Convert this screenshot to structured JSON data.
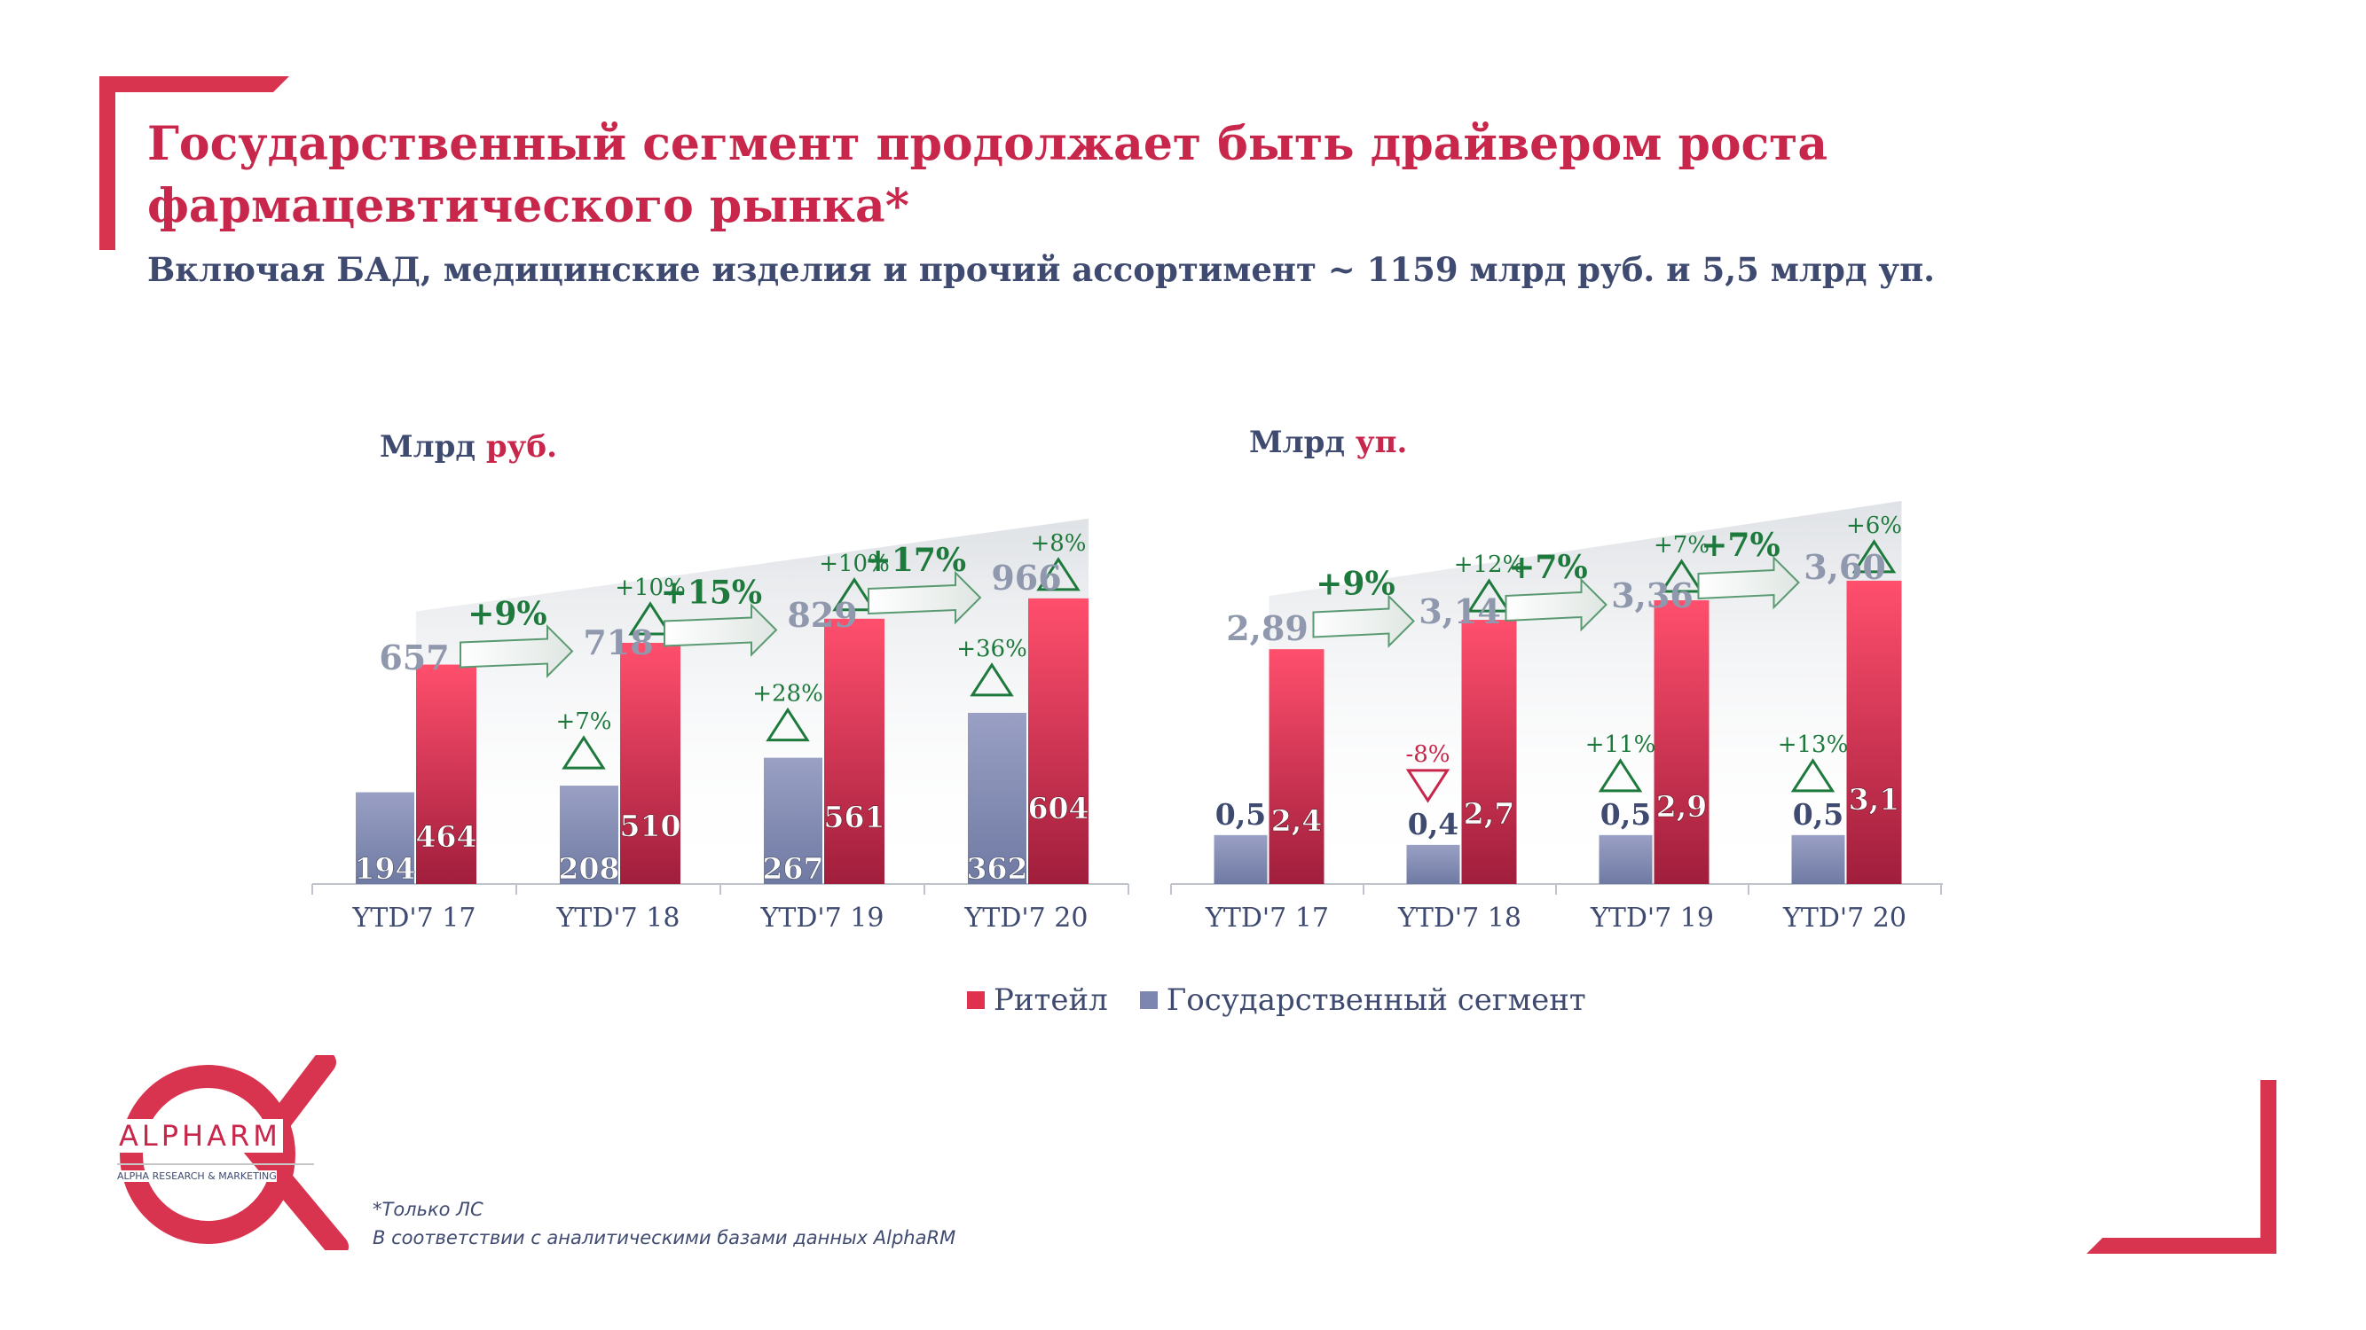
{
  "title": {
    "line1": "Государственный сегмент продолжает быть драйвером роста",
    "line2": "фармацевтического рынка*"
  },
  "subtitle": "Включая БАД, медицинские изделия и прочий ассортимент ~ 1159 млрд руб. и 5,5 млрд уп.",
  "colors": {
    "accent": "#c8264a",
    "retail_top": "#ff4f6d",
    "retail_bottom": "#a01e3c",
    "gov_top": "#9aa0c4",
    "gov_bottom": "#6f7aa3",
    "positive": "#1e7a3c",
    "negative": "#c8264a",
    "total_text": "#8f98ad",
    "navy": "#3f4a70"
  },
  "legend": {
    "retail": "Ритейл",
    "gov": "Государственный сегмент"
  },
  "chart_data": [
    {
      "type": "bar",
      "unit_label": {
        "prefix": "Млрд ",
        "accent": "руб."
      },
      "categories": [
        "YTD'7 17",
        "YTD'7 18",
        "YTD'7 19",
        "YTD'7 20"
      ],
      "ymax": 900,
      "series": [
        {
          "name": "Государственный сегмент",
          "values": [
            194,
            208,
            267,
            362
          ],
          "labels": [
            "194",
            "208",
            "267",
            "362"
          ],
          "growth": [
            "",
            "+7%",
            "+28%",
            "+36%"
          ],
          "growth_dir": [
            "",
            "up",
            "up",
            "up"
          ]
        },
        {
          "name": "Ритейл",
          "values": [
            464,
            510,
            561,
            604
          ],
          "labels": [
            "464",
            "510",
            "561",
            "604"
          ],
          "growth": [
            "",
            "+10%",
            "+10%",
            "+8%"
          ],
          "growth_dir": [
            "",
            "up",
            "up",
            "up"
          ]
        }
      ],
      "totals": [
        "657",
        "718",
        "829",
        "966"
      ],
      "total_growth": [
        "+9%",
        "+15%",
        "+17%"
      ]
    },
    {
      "type": "bar",
      "unit_label": {
        "prefix": "Млрд ",
        "accent": "уп."
      },
      "categories": [
        "YTD'7 17",
        "YTD'7 18",
        "YTD'7 19",
        "YTD'7 20"
      ],
      "ymax": 4.35,
      "series": [
        {
          "name": "Государственный сегмент",
          "values": [
            0.5,
            0.4,
            0.5,
            0.5
          ],
          "labels": [
            "0,5",
            "0,4",
            "0,5",
            "0,5"
          ],
          "growth": [
            "",
            "-8%",
            "+11%",
            "+13%"
          ],
          "growth_dir": [
            "",
            "down",
            "up",
            "up"
          ]
        },
        {
          "name": "Ритейл",
          "values": [
            2.4,
            2.7,
            2.9,
            3.1
          ],
          "labels": [
            "2,4",
            "2,7",
            "2,9",
            "3,1"
          ],
          "growth": [
            "",
            "+12%",
            "+7%",
            "+6%"
          ],
          "growth_dir": [
            "",
            "up",
            "up",
            "up"
          ]
        }
      ],
      "totals": [
        "2,89",
        "3,14",
        "3,36",
        "3,60"
      ],
      "total_growth": [
        "+9%",
        "+7%",
        "+7%"
      ]
    }
  ],
  "logo": {
    "name": "ALPHARM",
    "tagline": "ALPHA RESEARCH & MARKETING"
  },
  "footnotes": [
    "*Только ЛС",
    "В соответствии с аналитическими базами данных AlphaRM"
  ]
}
